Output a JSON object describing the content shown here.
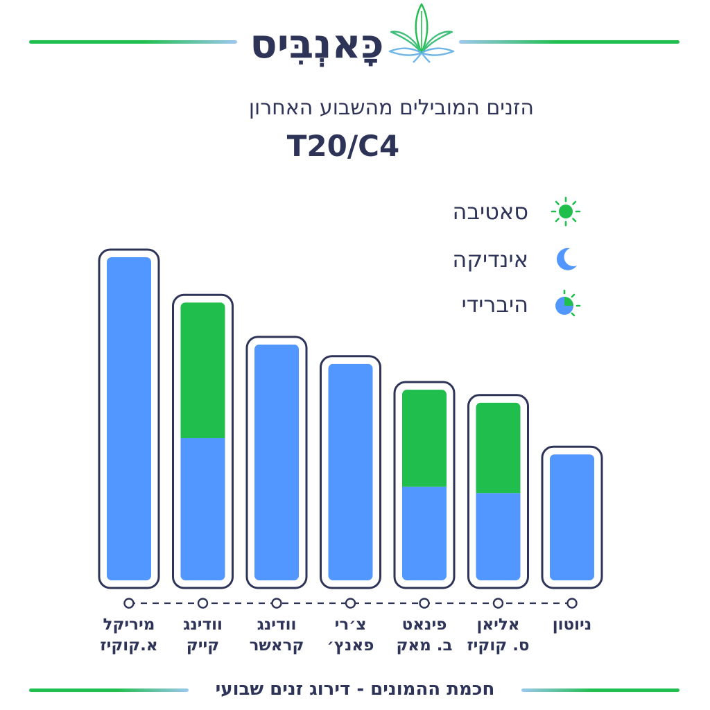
{
  "header": {
    "brand": "כָּאנְבִּיס",
    "logo_icon": "cannabis-leaf-icon"
  },
  "subtitle": "הזנים המובילים מהשבוע האחרון",
  "legend": [
    {
      "label": "סאטיבה",
      "icon": "sun-icon",
      "color": "#1fbe4d"
    },
    {
      "label": "אינדיקה",
      "icon": "moon-icon",
      "color": "#5296ff"
    },
    {
      "label": "היברידי",
      "icon": "half-sun-moon-icon",
      "color": "#5296ff"
    }
  ],
  "chart_data": {
    "type": "bar",
    "title": "T20/C4",
    "stacked": true,
    "categories": [
      "מיריקל\nא.קוקיז",
      "וודינג\nקייק",
      "וודינג\nקראשר",
      "צ׳רי\nפאנץ׳",
      "פינאט\nב. מאק",
      "אליאן\nס. קוקיז",
      "ניוטון"
    ],
    "series": [
      {
        "name": "אינדיקה",
        "color": "#5296ff",
        "values": [
          100,
          44,
          73,
          67,
          29,
          27,
          39
        ]
      },
      {
        "name": "סאטיבה",
        "color": "#1fbe4d",
        "values": [
          0,
          42,
          0,
          0,
          30,
          28,
          0
        ]
      }
    ],
    "ylim": [
      0,
      100
    ],
    "grid": false,
    "legend_position": "top-right"
  },
  "footer": {
    "text": "חכמת ההמונים - דירוג זנים שבועי"
  },
  "colors": {
    "outline": "#2e3358",
    "indica": "#5296ff",
    "sativa": "#1fbe4d",
    "text": "#2e3358"
  }
}
